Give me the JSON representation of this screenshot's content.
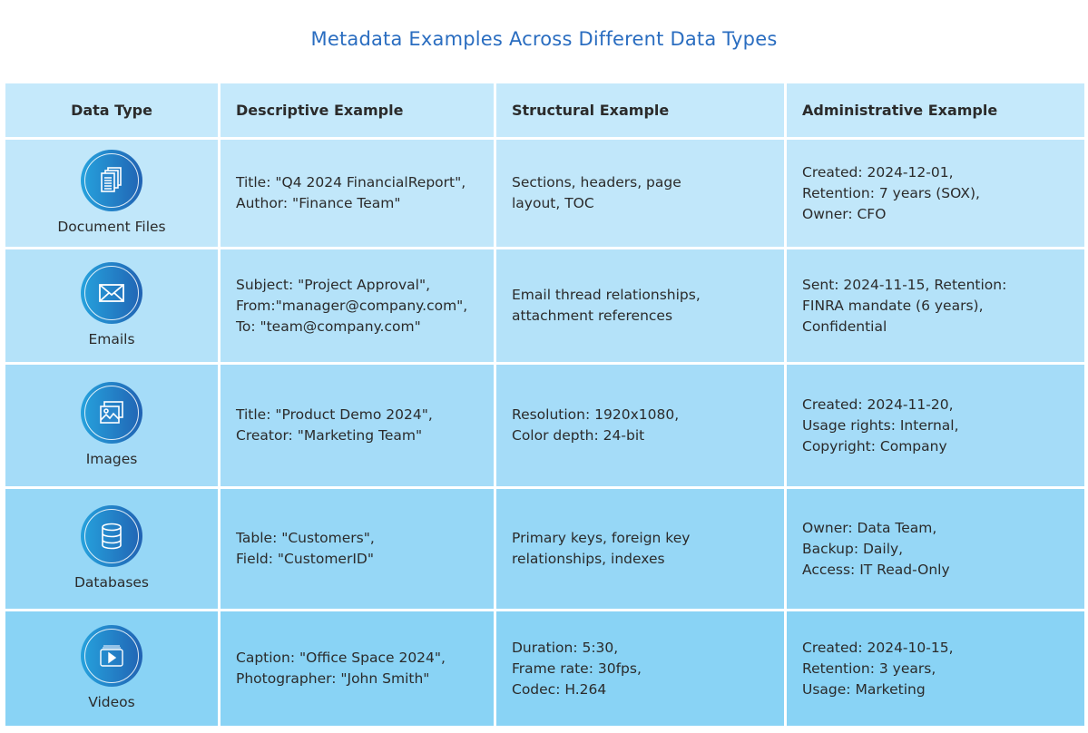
{
  "title": "Metadata Examples Across Different Data Types",
  "colors": {
    "title": "#2a6dc0",
    "icon_gradient_start": "#26a2dd",
    "icon_gradient_end": "#2163b3",
    "header_bg": "#c5e9fb",
    "last_row_bg": "#89d3f5"
  },
  "headers": [
    "Data Type",
    "Descriptive Example",
    "Structural Example",
    "Administrative Example"
  ],
  "rows": [
    {
      "type": "Document Files",
      "icon": "document-files-icon",
      "descriptive": [
        "Title: \"Q4 2024 FinancialReport\",",
        "Author: \"Finance Team\""
      ],
      "structural": [
        "Sections, headers, page",
        "layout, TOC"
      ],
      "administrative": [
        "Created: 2024-12-01,",
        "Retention: 7 years (SOX),",
        "Owner: CFO"
      ]
    },
    {
      "type": "Emails",
      "icon": "envelope-icon",
      "descriptive": [
        "Subject: \"Project Approval\",",
        "From:\"manager@company.com\",",
        "To: \"team@company.com\""
      ],
      "structural": [
        "Email thread relationships,",
        "attachment references"
      ],
      "administrative": [
        "Sent: 2024-11-15, Retention:",
        "FINRA mandate (6 years),",
        "Confidential"
      ]
    },
    {
      "type": "Images",
      "icon": "image-gallery-icon",
      "descriptive": [
        "Title: \"Product Demo 2024\",",
        "Creator: \"Marketing Team\""
      ],
      "structural": [
        "Resolution: 1920x1080,",
        "Color depth: 24-bit"
      ],
      "administrative": [
        "Created: 2024-11-20,",
        "Usage rights: Internal,",
        "Copyright: Company"
      ]
    },
    {
      "type": "Databases",
      "icon": "database-icon",
      "descriptive": [
        "Table: \"Customers\",",
        "Field: \"CustomerID\""
      ],
      "structural": [
        "Primary keys, foreign key",
        "relationships, indexes"
      ],
      "administrative": [
        "Owner: Data Team,",
        "Backup: Daily,",
        "Access: IT Read-Only"
      ]
    },
    {
      "type": "Videos",
      "icon": "video-play-icon",
      "descriptive": [
        "Caption: \"Office Space 2024\",",
        "Photographer: \"John Smith\""
      ],
      "structural": [
        "Duration: 5:30,",
        "Frame rate: 30fps,",
        "Codec: H.264"
      ],
      "administrative": [
        "Created: 2024-10-15,",
        "Retention: 3 years,",
        "Usage: Marketing"
      ]
    }
  ]
}
